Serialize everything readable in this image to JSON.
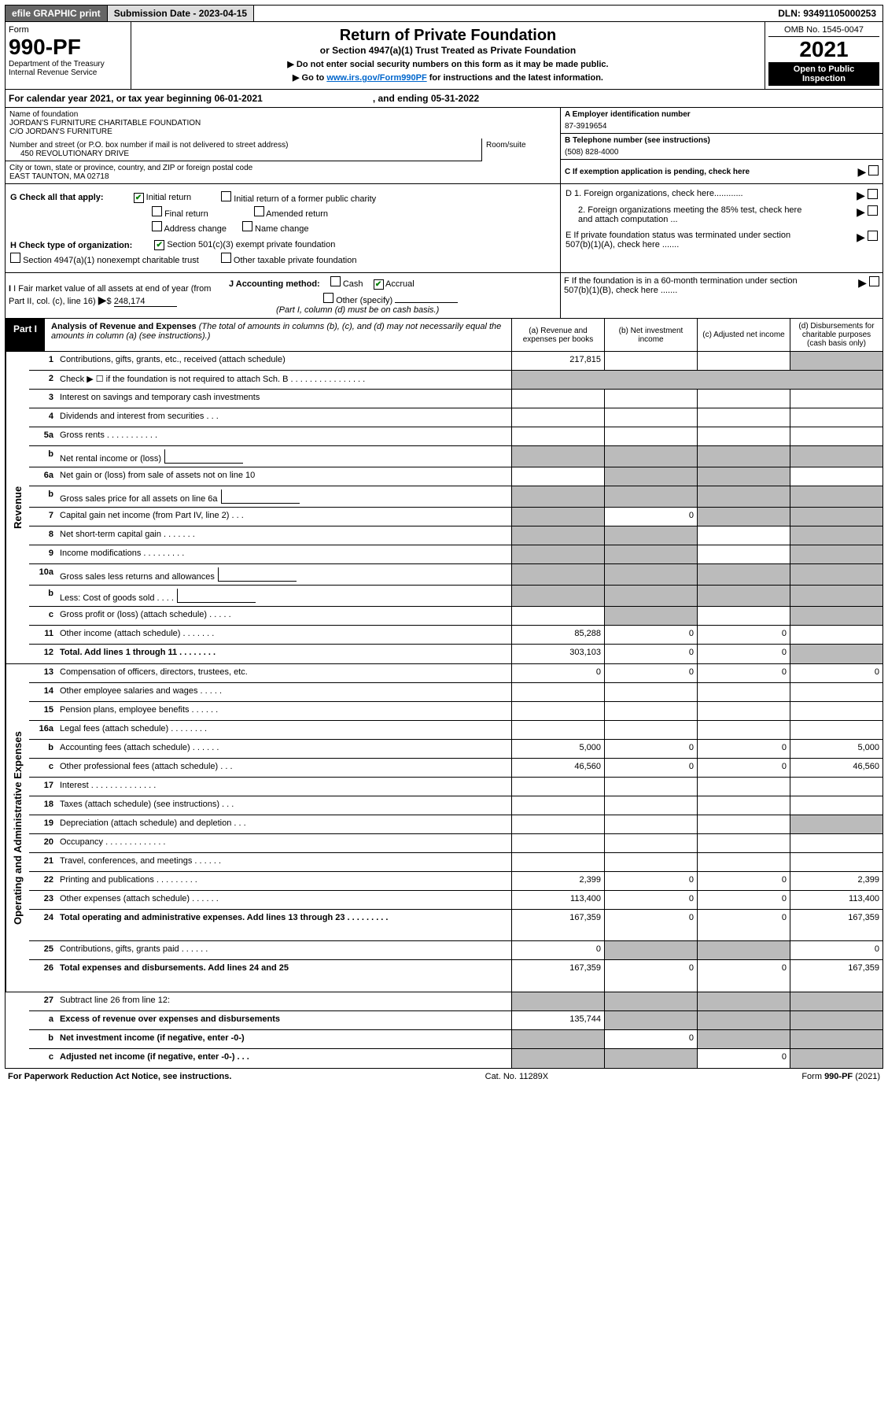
{
  "top_bar": {
    "efile": "efile GRAPHIC print",
    "submission": "Submission Date - 2023-04-15",
    "dln": "DLN: 93491105000253"
  },
  "header": {
    "form": "Form",
    "form_num": "990-PF",
    "dept": "Department of the Treasury",
    "irs": "Internal Revenue Service",
    "title": "Return of Private Foundation",
    "subtitle": "or Section 4947(a)(1) Trust Treated as Private Foundation",
    "instr1": "▶ Do not enter social security numbers on this form as it may be made public.",
    "instr2_pre": "▶ Go to ",
    "instr2_link": "www.irs.gov/Form990PF",
    "instr2_post": " for instructions and the latest information.",
    "omb": "OMB No. 1545-0047",
    "year": "2021",
    "open": "Open to Public Inspection"
  },
  "calendar": {
    "text1": "For calendar year 2021, or tax year beginning 06-01-2021",
    "text2": ", and ending 05-31-2022"
  },
  "info": {
    "name_label": "Name of foundation",
    "name1": "JORDAN'S FURNITURE CHARITABLE FOUNDATION",
    "name2": "C/O JORDAN'S FURNITURE",
    "addr_label": "Number and street (or P.O. box number if mail is not delivered to street address)",
    "addr": "450 REVOLUTIONARY DRIVE",
    "room_label": "Room/suite",
    "city_label": "City or town, state or province, country, and ZIP or foreign postal code",
    "city": "EAST TAUNTON, MA  02718",
    "ein_label": "A Employer identification number",
    "ein": "87-3919654",
    "phone_label": "B Telephone number (see instructions)",
    "phone": "(508) 828-4000",
    "c_label": "C If exemption application is pending, check here",
    "d1": "D 1. Foreign organizations, check here............",
    "d2": "2. Foreign organizations meeting the 85% test, check here and attach computation ...",
    "e_label": "E  If private foundation status was terminated under section 507(b)(1)(A), check here .......",
    "f_label": "F  If the foundation is in a 60-month termination under section 507(b)(1)(B), check here .......",
    "g_label": "G Check all that apply:",
    "g_initial": "Initial return",
    "g_initial_former": "Initial return of a former public charity",
    "g_final": "Final return",
    "g_amended": "Amended return",
    "g_address": "Address change",
    "g_name": "Name change",
    "h_label": "H Check type of organization:",
    "h_501c3": "Section 501(c)(3) exempt private foundation",
    "h_4947": "Section 4947(a)(1) nonexempt charitable trust",
    "h_other": "Other taxable private foundation",
    "i_label": "I Fair market value of all assets at end of year (from Part II, col. (c), line 16)",
    "i_val": "248,174",
    "j_label": "J Accounting method:",
    "j_cash": "Cash",
    "j_accrual": "Accrual",
    "j_other": "Other (specify)",
    "j_note": "(Part I, column (d) must be on cash basis.)"
  },
  "part1": {
    "label": "Part I",
    "title": "Analysis of Revenue and Expenses",
    "sub": "(The total of amounts in columns (b), (c), and (d) may not necessarily equal the amounts in column (a) (see instructions).)",
    "col_a": "(a) Revenue and expenses per books",
    "col_b": "(b) Net investment income",
    "col_c": "(c) Adjusted net income",
    "col_d": "(d) Disbursements for charitable purposes (cash basis only)",
    "side_revenue": "Revenue",
    "side_expenses": "Operating and Administrative Expenses"
  },
  "lines": [
    {
      "n": "1",
      "label": "Contributions, gifts, grants, etc., received (attach schedule)",
      "a": "217,815",
      "d_grey": true
    },
    {
      "n": "2",
      "label": "Check ▶ ☐ if the foundation is not required to attach Sch. B      .   .   .   .   .   .   .   .   .   .   .   .   .   .   .   .",
      "span": true
    },
    {
      "n": "3",
      "label": "Interest on savings and temporary cash investments"
    },
    {
      "n": "4",
      "label": "Dividends and interest from securities     .    .    ."
    },
    {
      "n": "5a",
      "label": "Gross rents      .    .    .    .    .    .    .    .    .    .    ."
    },
    {
      "n": "b",
      "label": "Net rental income or (loss)",
      "sub_input": true,
      "b_grey": true,
      "c_grey": true,
      "d_grey": true,
      "a_grey": true
    },
    {
      "n": "6a",
      "label": "Net gain or (loss) from sale of assets not on line 10",
      "b_grey": true,
      "c_grey": true
    },
    {
      "n": "b",
      "label": "Gross sales price for all assets on line 6a",
      "sub_input": true,
      "a_grey": true,
      "b_grey": true,
      "c_grey": true,
      "d_grey": true
    },
    {
      "n": "7",
      "label": "Capital gain net income (from Part IV, line 2)    .    .    .",
      "a_grey": true,
      "b": "0",
      "c_grey": true,
      "d_grey": true
    },
    {
      "n": "8",
      "label": "Net short-term capital gain   .    .    .    .    .    .    .",
      "a_grey": true,
      "b_grey": true,
      "d_grey": true
    },
    {
      "n": "9",
      "label": "Income modifications  .    .    .    .    .    .    .    .    .",
      "a_grey": true,
      "b_grey": true,
      "d_grey": true
    },
    {
      "n": "10a",
      "label": "Gross sales less returns and allowances",
      "sub_input": true,
      "a_grey": true,
      "b_grey": true,
      "c_grey": true,
      "d_grey": true
    },
    {
      "n": "b",
      "label": "Less: Cost of goods sold     .    .    .    .",
      "sub_input": true,
      "a_grey": true,
      "b_grey": true,
      "c_grey": true,
      "d_grey": true
    },
    {
      "n": "c",
      "label": "Gross profit or (loss) (attach schedule)     .    .    .    .    .",
      "b_grey": true,
      "d_grey": true
    },
    {
      "n": "11",
      "label": "Other income (attach schedule)    .    .    .    .    .    .    .",
      "a": "85,288",
      "b": "0",
      "c": "0"
    },
    {
      "n": "12",
      "label": "Total. Add lines 1 through 11    .    .    .    .    .    .    .    .",
      "bold": true,
      "a": "303,103",
      "b": "0",
      "c": "0",
      "d_grey": true
    }
  ],
  "exp_lines": [
    {
      "n": "13",
      "label": "Compensation of officers, directors, trustees, etc.",
      "a": "0",
      "b": "0",
      "c": "0",
      "d": "0"
    },
    {
      "n": "14",
      "label": "Other employee salaries and wages    .    .    .    .    ."
    },
    {
      "n": "15",
      "label": "Pension plans, employee benefits  .    .    .    .    .    ."
    },
    {
      "n": "16a",
      "label": "Legal fees (attach schedule)  .    .    .    .    .    .    .    ."
    },
    {
      "n": "b",
      "label": "Accounting fees (attach schedule)  .    .    .    .    .    .",
      "a": "5,000",
      "b": "0",
      "c": "0",
      "d": "5,000"
    },
    {
      "n": "c",
      "label": "Other professional fees (attach schedule)     .    .    .",
      "a": "46,560",
      "b": "0",
      "c": "0",
      "d": "46,560"
    },
    {
      "n": "17",
      "label": "Interest  .    .    .    .    .    .    .    .    .    .    .    .    .    ."
    },
    {
      "n": "18",
      "label": "Taxes (attach schedule) (see instructions)      .    .    ."
    },
    {
      "n": "19",
      "label": "Depreciation (attach schedule) and depletion    .    .    .",
      "d_grey": true
    },
    {
      "n": "20",
      "label": "Occupancy  .    .    .    .    .    .    .    .    .    .    .    .    ."
    },
    {
      "n": "21",
      "label": "Travel, conferences, and meetings  .    .    .    .    .    ."
    },
    {
      "n": "22",
      "label": "Printing and publications  .    .    .    .    .    .    .    .    .",
      "a": "2,399",
      "b": "0",
      "c": "0",
      "d": "2,399"
    },
    {
      "n": "23",
      "label": "Other expenses (attach schedule)  .    .    .    .    .    .",
      "a": "113,400",
      "b": "0",
      "c": "0",
      "d": "113,400"
    },
    {
      "n": "24",
      "label": "Total operating and administrative expenses. Add lines 13 through 23    .    .    .    .    .    .    .    .    .",
      "bold": true,
      "a": "167,359",
      "b": "0",
      "c": "0",
      "d": "167,359",
      "tall": true
    },
    {
      "n": "25",
      "label": "Contributions, gifts, grants paid     .    .    .    .    .    .",
      "a": "0",
      "b_grey": true,
      "c_grey": true,
      "d": "0"
    },
    {
      "n": "26",
      "label": "Total expenses and disbursements. Add lines 24 and 25",
      "bold": true,
      "a": "167,359",
      "b": "0",
      "c": "0",
      "d": "167,359",
      "tall": true
    }
  ],
  "final_lines": [
    {
      "n": "27",
      "label": "Subtract line 26 from line 12:",
      "a_grey": true,
      "b_grey": true,
      "c_grey": true,
      "d_grey": true
    },
    {
      "n": "a",
      "label": "Excess of revenue over expenses and disbursements",
      "bold": true,
      "a": "135,744",
      "b_grey": true,
      "c_grey": true,
      "d_grey": true
    },
    {
      "n": "b",
      "label": "Net investment income (if negative, enter -0-)",
      "bold": true,
      "a_grey": true,
      "b": "0",
      "c_grey": true,
      "d_grey": true
    },
    {
      "n": "c",
      "label": "Adjusted net income (if negative, enter -0-)    .    .    .",
      "bold": true,
      "a_grey": true,
      "b_grey": true,
      "c": "0",
      "d_grey": true
    }
  ],
  "footer": {
    "left": "For Paperwork Reduction Act Notice, see instructions.",
    "center": "Cat. No. 11289X",
    "right": "Form 990-PF (2021)"
  }
}
